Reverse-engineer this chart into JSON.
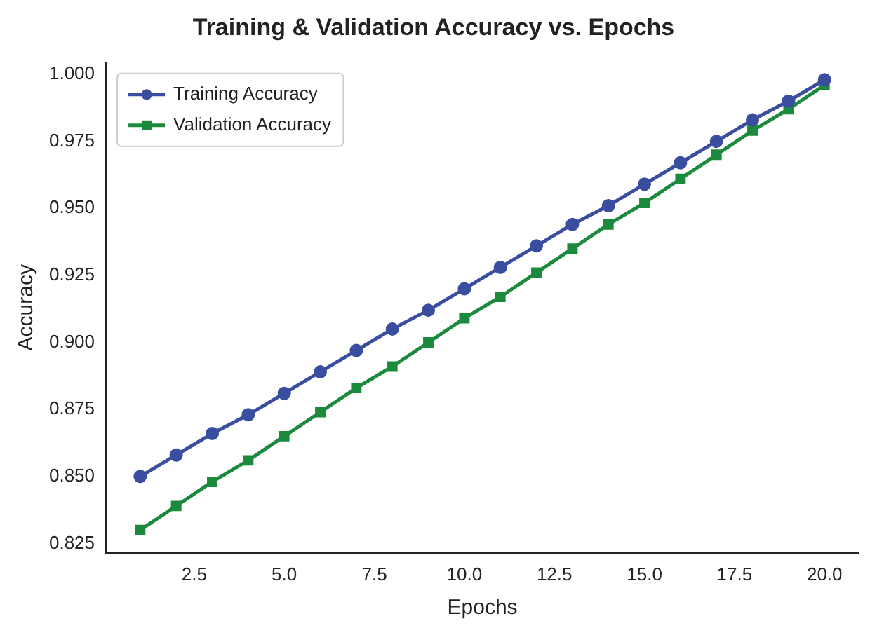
{
  "chart_data": {
    "type": "line",
    "title": "Training & Validation Accuracy vs. Epochs",
    "xlabel": "Epochs",
    "ylabel": "Accuracy",
    "x": [
      1,
      2,
      3,
      4,
      5,
      6,
      7,
      8,
      9,
      10,
      11,
      12,
      13,
      14,
      15,
      16,
      17,
      18,
      19,
      20
    ],
    "series": [
      {
        "name": "Training Accuracy",
        "color": "#3a4ea0",
        "marker": "circle",
        "values": [
          0.85,
          0.858,
          0.866,
          0.873,
          0.881,
          0.889,
          0.897,
          0.905,
          0.912,
          0.92,
          0.928,
          0.936,
          0.944,
          0.951,
          0.959,
          0.967,
          0.975,
          0.983,
          0.99,
          0.998
        ]
      },
      {
        "name": "Validation Accuracy",
        "color": "#1b8a3c",
        "marker": "square",
        "values": [
          0.83,
          0.839,
          0.848,
          0.856,
          0.865,
          0.874,
          0.883,
          0.891,
          0.9,
          0.909,
          0.917,
          0.926,
          0.935,
          0.944,
          0.952,
          0.961,
          0.97,
          0.979,
          0.987,
          0.996
        ]
      }
    ],
    "xlim": [
      0.05,
      20.95
    ],
    "xticks": [
      {
        "value": 2.5,
        "label": "2.5"
      },
      {
        "value": 5,
        "label": "5.0"
      },
      {
        "value": 7.5,
        "label": "7.5"
      },
      {
        "value": 10,
        "label": "10.0"
      },
      {
        "value": 12.5,
        "label": "12.5"
      },
      {
        "value": 15,
        "label": "15.0"
      },
      {
        "value": 17.5,
        "label": "17.5"
      },
      {
        "value": 20,
        "label": "20.0"
      }
    ],
    "ylim": [
      0.8215,
      1.0045
    ],
    "yticks": [
      0.825,
      {
        "value": 0.85,
        "label": "0.850"
      },
      0.875,
      {
        "value": 0.9,
        "label": "0.900"
      },
      0.925,
      {
        "value": 0.95,
        "label": "0.950"
      },
      0.975,
      {
        "value": 1,
        "label": "1.000"
      }
    ],
    "grid": false,
    "legend": "top left",
    "line_style": "solid"
  }
}
